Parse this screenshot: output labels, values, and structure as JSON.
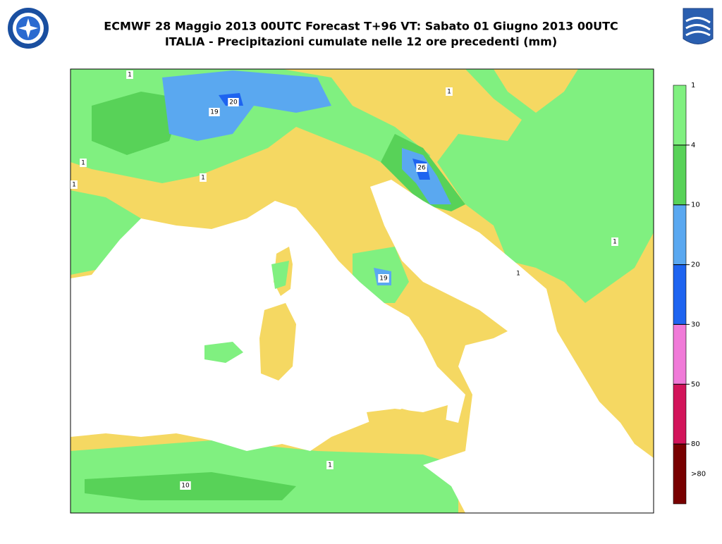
{
  "header": {
    "title": "ECMWF 28 Maggio 2013 00UTC Forecast T+96 VT: Sabato 01 Giugno 2013 00UTC",
    "subtitle": "ITALIA - Precipitazioni cumulate nelle 12 ore precedenti (mm)"
  },
  "map": {
    "contour_labels": [
      "1",
      "20",
      "19",
      "1",
      "1",
      "1",
      "1",
      "26",
      "19",
      "1",
      "1",
      "10",
      "1"
    ]
  },
  "legend": {
    "labels": [
      "1",
      "4",
      "10",
      "20",
      "30",
      "50",
      "80",
      ">80"
    ],
    "colors": [
      "#80f080",
      "#58d258",
      "#5aa8f0",
      "#1e64f0",
      "#f07ad8",
      "#d2145a",
      "#780000"
    ]
  }
}
